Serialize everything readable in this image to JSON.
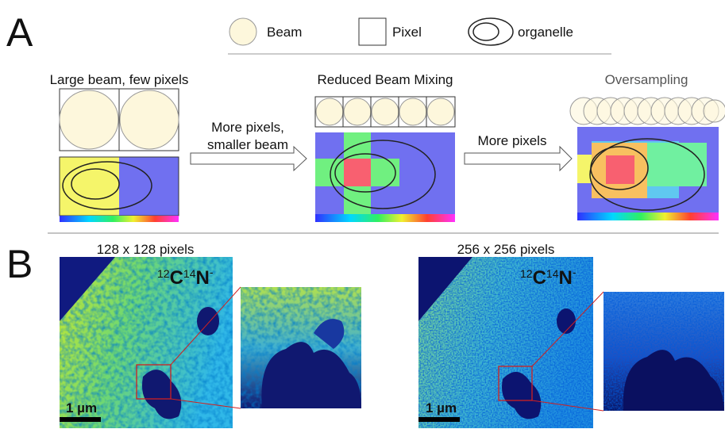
{
  "panel_a": {
    "label": "A",
    "legend": {
      "beam": "Beam",
      "pixel": "Pixel",
      "organelle": "organelle"
    },
    "panels": [
      {
        "title": "Large beam, few pixels"
      },
      {
        "title": "Reduced Beam Mixing"
      },
      {
        "title": "Oversampling"
      }
    ],
    "arrows": [
      {
        "label": [
          "More pixels,",
          "smaller beam"
        ]
      },
      {
        "label": [
          "More pixels"
        ]
      }
    ]
  },
  "panel_b": {
    "label": "B",
    "images": [
      {
        "title": "128 x 128 pixels",
        "ion": {
          "mass1": "12",
          "element1": "C",
          "mass2": "14",
          "element2": "N",
          "charge": "-"
        },
        "scale": "1 µm"
      },
      {
        "title": "256 x 256 pixels",
        "ion": {
          "mass1": "12",
          "element1": "C",
          "mass2": "14",
          "element2": "N",
          "charge": "-"
        },
        "scale": "1 µm"
      }
    ]
  }
}
